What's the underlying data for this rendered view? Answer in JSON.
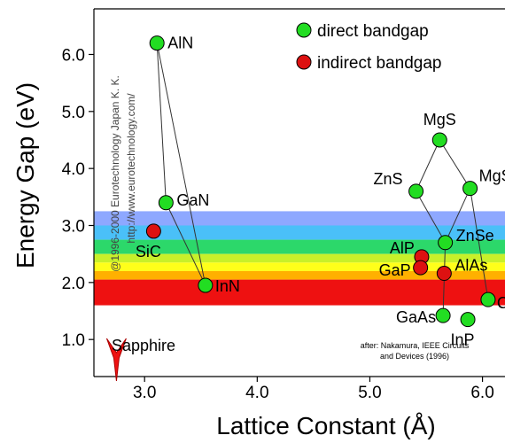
{
  "chart_data": {
    "type": "scatter",
    "title": "",
    "xlabel": "Lattice Constant (Å)",
    "ylabel": "Energy Gap (eV)",
    "xlim": [
      2.55,
      6.2
    ],
    "ylim": [
      0.35,
      6.8
    ],
    "xticks": [
      {
        "value": 3.0,
        "label": "3.0"
      },
      {
        "value": 4.0,
        "label": "4.0"
      },
      {
        "value": 5.0,
        "label": "5.0"
      },
      {
        "value": 6.0,
        "label": "6.0"
      }
    ],
    "yticks": [
      {
        "value": 1.0,
        "label": "1.0"
      },
      {
        "value": 2.0,
        "label": "2.0"
      },
      {
        "value": 3.0,
        "label": "3.0"
      },
      {
        "value": 4.0,
        "label": "4.0"
      },
      {
        "value": 5.0,
        "label": "5.0"
      },
      {
        "value": 6.0,
        "label": "6.0"
      }
    ],
    "legend": {
      "placement": "top-right",
      "entries": [
        {
          "label": "direct bandgap",
          "color": "#22dd22"
        },
        {
          "label": "indirect bandgap",
          "color": "#dd1111"
        }
      ]
    },
    "series": [
      {
        "name": "direct bandgap",
        "color": "#22dd22",
        "points": [
          {
            "label": "AlN",
            "x": 3.11,
            "y": 6.2
          },
          {
            "label": "GaN",
            "x": 3.19,
            "y": 3.4
          },
          {
            "label": "InN",
            "x": 3.54,
            "y": 1.95
          },
          {
            "label": "MgS",
            "x": 5.62,
            "y": 4.5
          },
          {
            "label": "ZnS",
            "x": 5.41,
            "y": 3.6
          },
          {
            "label": "MgSe",
            "x": 5.89,
            "y": 3.65
          },
          {
            "label": "ZnSe",
            "x": 5.67,
            "y": 2.7
          },
          {
            "label": "CdSe",
            "x": 6.05,
            "y": 1.7
          },
          {
            "label": "GaAs",
            "x": 5.65,
            "y": 1.42
          },
          {
            "label": "InP",
            "x": 5.87,
            "y": 1.35
          }
        ]
      },
      {
        "name": "indirect bandgap",
        "color": "#dd1111",
        "points": [
          {
            "label": "SiC",
            "x": 3.08,
            "y": 2.9
          },
          {
            "label": "AlP",
            "x": 5.46,
            "y": 2.45
          },
          {
            "label": "GaP",
            "x": 5.45,
            "y": 2.26
          },
          {
            "label": "AlAs",
            "x": 5.66,
            "y": 2.16
          }
        ]
      }
    ],
    "connections": [
      [
        "AlN",
        "GaN"
      ],
      [
        "GaN",
        "InN"
      ],
      [
        "AlN",
        "InN"
      ],
      [
        "MgS",
        "ZnS"
      ],
      [
        "MgS",
        "MgSe"
      ],
      [
        "ZnS",
        "ZnSe"
      ],
      [
        "MgSe",
        "ZnSe"
      ],
      [
        "ZnSe",
        "GaAs"
      ],
      [
        "MgSe",
        "CdSe"
      ]
    ],
    "color_bands": [
      {
        "y0": 3.0,
        "y1": 3.25,
        "color": "#8ea8ff"
      },
      {
        "y0": 2.75,
        "y1": 3.0,
        "color": "#4ac0f8"
      },
      {
        "y0": 2.5,
        "y1": 2.75,
        "color": "#2cd86a"
      },
      {
        "y0": 2.35,
        "y1": 2.5,
        "color": "#c8f02a"
      },
      {
        "y0": 2.2,
        "y1": 2.35,
        "color": "#ffff1a"
      },
      {
        "y0": 2.05,
        "y1": 2.2,
        "color": "#ffb000"
      },
      {
        "y0": 1.6,
        "y1": 2.05,
        "color": "#ee1111"
      }
    ],
    "annotations": {
      "copyright": "@1996-2000 Eurotechnology Japan K. K.",
      "website": "http://www.eurotechnology.com/",
      "substrate": "Sapphire",
      "substrate_x": 2.75,
      "citation_line1": "after: Nakamura, IEEE Circuits",
      "citation_line2": "and Devices (1996)"
    }
  }
}
